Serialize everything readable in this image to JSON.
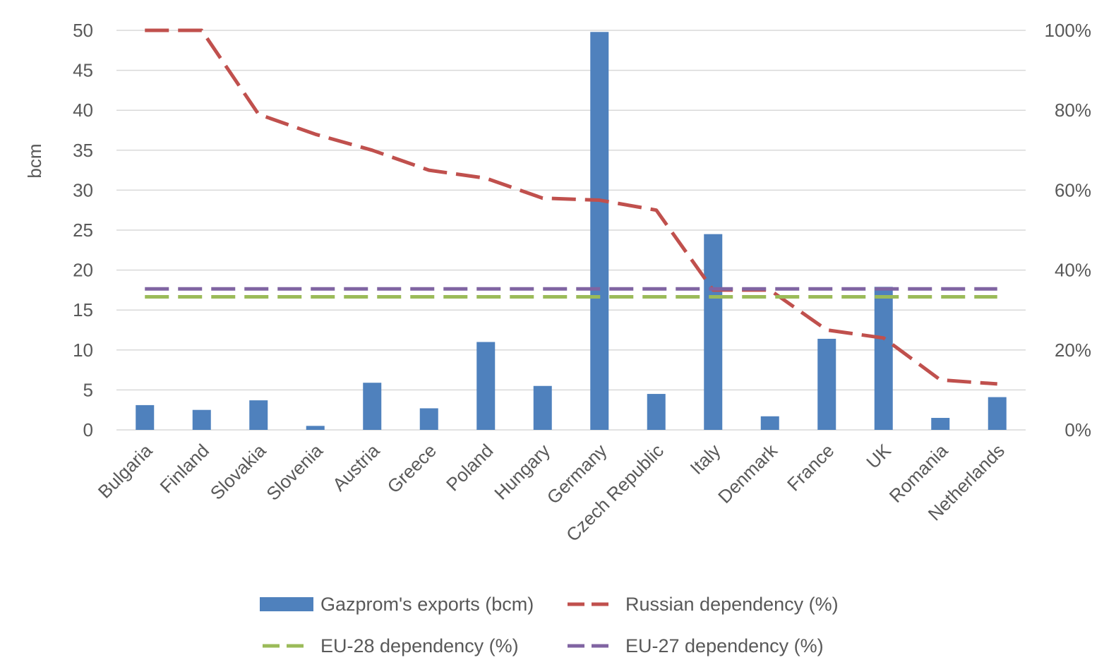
{
  "chart_data": {
    "type": "bar",
    "categories": [
      "Bulgaria",
      "Finland",
      "Slovakia",
      "Slovenia",
      "Austria",
      "Greece",
      "Poland",
      "Hungary",
      "Germany",
      "Czech Republic",
      "Italy",
      "Denmark",
      "France",
      "UK",
      "Romania",
      "Netherlands"
    ],
    "ylabel": "bcm",
    "ylim": [
      0,
      50
    ],
    "yticks": [
      "0",
      "5",
      "10",
      "15",
      "20",
      "25",
      "30",
      "35",
      "40",
      "45",
      "50"
    ],
    "y2lim": [
      0,
      100
    ],
    "y2ticks": [
      "0%",
      "20%",
      "40%",
      "60%",
      "80%",
      "100%"
    ],
    "grid": true,
    "legend_position": "bottom",
    "series": [
      {
        "name": "Gazprom's exports (bcm)",
        "kind": "bar",
        "axis": "left",
        "color": "#4f81bd",
        "values": [
          3.1,
          2.5,
          3.7,
          0.5,
          5.9,
          2.7,
          11.0,
          5.5,
          49.8,
          4.5,
          24.5,
          1.7,
          11.4,
          17.9,
          1.5,
          4.1
        ]
      },
      {
        "name": "Russian dependency (%)",
        "kind": "line",
        "axis": "right",
        "color": "#c0504d",
        "values": [
          100,
          100,
          79,
          74,
          70,
          65,
          63,
          58,
          57.5,
          55,
          35,
          35,
          25,
          23,
          12.5,
          11.5
        ]
      },
      {
        "name": "EU-28 dependency (%)",
        "kind": "line",
        "axis": "right",
        "color": "#9bbb59",
        "values": [
          33.3,
          33.3,
          33.3,
          33.3,
          33.3,
          33.3,
          33.3,
          33.3,
          33.3,
          33.3,
          33.3,
          33.3,
          33.3,
          33.3,
          33.3,
          33.3
        ]
      },
      {
        "name": "EU-27 dependency (%)",
        "kind": "line",
        "axis": "right",
        "color": "#8064a2",
        "values": [
          35.3,
          35.3,
          35.3,
          35.3,
          35.3,
          35.3,
          35.3,
          35.3,
          35.3,
          35.3,
          35.3,
          35.3,
          35.3,
          35.3,
          35.3,
          35.3
        ]
      }
    ]
  }
}
